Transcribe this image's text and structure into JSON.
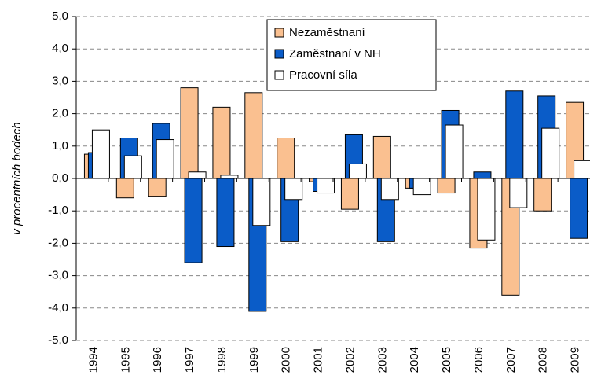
{
  "chart_data": {
    "type": "bar",
    "y_label": "v procentních bodech",
    "categories": [
      "1994",
      "1995",
      "1996",
      "1997",
      "1998",
      "1999",
      "2000",
      "2001",
      "2002",
      "2003",
      "2004",
      "2005",
      "2006",
      "2007",
      "2008",
      "2009"
    ],
    "series": [
      {
        "name": "Nezaměstnaní",
        "color": "#fac090",
        "values": [
          0.75,
          -0.6,
          -0.55,
          2.8,
          2.2,
          2.65,
          1.25,
          -0.1,
          -0.95,
          1.3,
          -0.3,
          -0.45,
          -2.15,
          -3.6,
          -1.0,
          2.35
        ]
      },
      {
        "name": "Zaměstnaní v NH",
        "color": "#0a5cc8",
        "values": [
          0.8,
          1.25,
          1.7,
          -2.6,
          -2.1,
          -4.1,
          -1.95,
          -0.4,
          1.35,
          -1.95,
          -0.3,
          2.1,
          0.2,
          2.7,
          2.55,
          -1.85
        ]
      },
      {
        "name": "Pracovní síla",
        "color": "#ffffff",
        "values": [
          1.5,
          0.7,
          1.2,
          0.2,
          0.1,
          -1.45,
          -0.65,
          -0.45,
          0.45,
          -0.65,
          -0.5,
          1.65,
          -1.9,
          -0.9,
          1.55,
          0.55
        ]
      }
    ],
    "ylim": [
      -5,
      5
    ],
    "yticks": [
      {
        "value": -5,
        "label": "-5,0"
      },
      {
        "value": -4,
        "label": "-4,0"
      },
      {
        "value": -3,
        "label": "-3,0"
      },
      {
        "value": -2,
        "label": "-2,0"
      },
      {
        "value": -1,
        "label": "-1,0"
      },
      {
        "value": 0,
        "label": "0,0"
      },
      {
        "value": 1,
        "label": "1,0"
      },
      {
        "value": 2,
        "label": "2,0"
      },
      {
        "value": 3,
        "label": "3,0"
      },
      {
        "value": 4,
        "label": "4,0"
      },
      {
        "value": 5,
        "label": "5,0"
      }
    ],
    "grid": true
  }
}
